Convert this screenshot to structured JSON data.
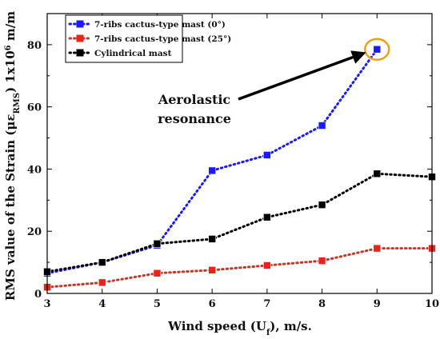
{
  "chart_data": {
    "type": "line",
    "xlabel_main": "Wind speed (U",
    "xlabel_sub": "f",
    "xlabel_tail": "), m/s.",
    "ylabel_main": "RMS value of the Strain (με",
    "ylabel_sub": "RMS",
    "ylabel_tail": ") 1x10",
    "ylabel_sup": "6",
    "ylabel_unit": " m/m",
    "xlim": [
      3,
      10
    ],
    "ylim": [
      0,
      90
    ],
    "xticks": [
      3,
      4,
      5,
      6,
      7,
      8,
      9,
      10
    ],
    "yticks": [
      0,
      20,
      40,
      60,
      80
    ],
    "grid": false,
    "legend_position": "top-left",
    "series": [
      {
        "name": "7-ribs cactus-type mast (0°)",
        "color": "#1a1aff",
        "x": [
          3,
          4,
          5,
          6,
          7,
          8,
          9
        ],
        "y": [
          6.5,
          10,
          15.5,
          39.5,
          44.5,
          54,
          78.5
        ]
      },
      {
        "name": "7-ribs cactus-type mast (25°)",
        "color": "#c0392b",
        "marker_color": "#e8231b",
        "x": [
          3,
          4,
          5,
          6,
          7,
          8,
          9,
          10
        ],
        "y": [
          2,
          3.5,
          6.5,
          7.5,
          9,
          10.5,
          14.5,
          14.5
        ]
      },
      {
        "name": "Cylindrical mast",
        "color": "#000000",
        "x": [
          3,
          4,
          5,
          6,
          7,
          8,
          9,
          10
        ],
        "y": [
          7,
          10,
          16,
          17.5,
          24.5,
          28.5,
          38.5,
          37.5
        ]
      }
    ],
    "annotation": {
      "lines": [
        "Aerolastic",
        "resonance"
      ],
      "circle_color": "#e6a317"
    }
  }
}
